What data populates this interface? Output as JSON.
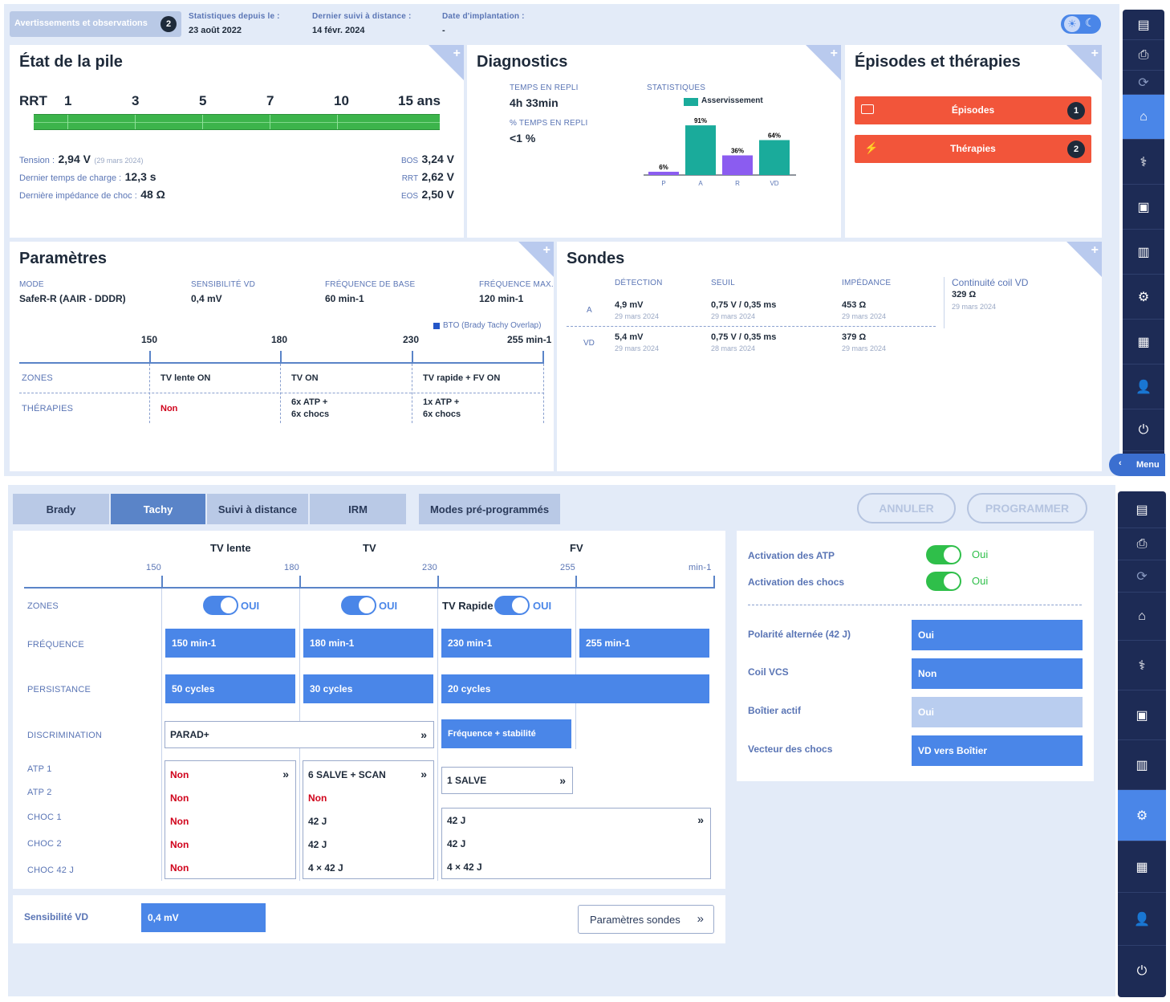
{
  "top": {
    "alerts_label": "Avertissements et observations",
    "alerts_count": "2",
    "stats_label": "Statistiques depuis le :",
    "stats_value": "23 août 2022",
    "remote_label": "Dernier suivi à distance :",
    "remote_value": "14 févr. 2024",
    "impl_label": "Date d'implantation :",
    "impl_value": "-"
  },
  "battery": {
    "title": "État de la pile",
    "rrt": "RRT",
    "ticks": [
      "1",
      "3",
      "5",
      "7",
      "10",
      "15 ans"
    ],
    "tension_label": "Tension :",
    "tension_value": "2,94 V",
    "tension_date": "(29 mars 2024)",
    "charge_label": "Dernier temps de charge :",
    "charge_value": "12,3 s",
    "imp_label": "Dernière impédance de choc :",
    "imp_value": "48 Ω",
    "bos_label": "BOS",
    "bos_value": "3,24 V",
    "rrt_label": "RRT",
    "rrt_value": "2,62 V",
    "eos_label": "EOS",
    "eos_value": "2,50 V"
  },
  "diag": {
    "title": "Diagnostics",
    "t1_label": "TEMPS EN REPLI",
    "t1_value": "4h 33min",
    "t2_label": "% TEMPS EN REPLI",
    "t2_value": "<1 %",
    "stats_label": "STATISTIQUES",
    "legend": "Asservissement"
  },
  "chart_data": {
    "type": "bar",
    "categories": [
      "P",
      "A",
      "R",
      "VD"
    ],
    "values": [
      6,
      91,
      36,
      64
    ],
    "labels": [
      "6%",
      "91%",
      "36%",
      "64%"
    ],
    "ylim": [
      0,
      100
    ],
    "legend": "Asservissement"
  },
  "episodes": {
    "title": "Épisodes et thérapies",
    "ep_label": "Épisodes",
    "ep_count": "1",
    "th_label": "Thérapies",
    "th_count": "2"
  },
  "params": {
    "title": "Paramètres",
    "mode_label": "MODE",
    "mode_value": "SafeR-R (AAIR - DDDR)",
    "sens_label": "SENSIBILITÉ VD",
    "sens_value": "0,4 mV",
    "base_label": "FRÉQUENCE DE BASE",
    "base_value": "60 min-1",
    "max_label": "FRÉQUENCE MAX.",
    "max_value": "120 min-1",
    "bto": "BTO (Brady Tachy Overlap)",
    "scale": [
      "150",
      "180",
      "230",
      "255 min-1"
    ],
    "zones_label": "ZONES",
    "ther_label": "THÉRAPIES",
    "z1": "TV lente ON",
    "z2": "TV ON",
    "z3": "TV rapide + FV ON",
    "t1": "Non",
    "t2a": "6x ATP  +",
    "t2b": "6x chocs",
    "t3a": "1x ATP  +",
    "t3b": "6x chocs"
  },
  "sondes": {
    "title": "Sondes",
    "h_det": "DÉTECTION",
    "h_seuil": "SEUIL",
    "h_imp": "IMPÉDANCE",
    "coil_label": "Continuité coil VD",
    "coil_value": "329 Ω",
    "coil_date": "29 mars 2024",
    "rows": [
      {
        "ch": "A",
        "det": "4,9 mV",
        "det_d": "29 mars 2024",
        "seuil": "0,75 V / 0,35 ms",
        "seuil_d": "29 mars 2024",
        "imp": "453 Ω",
        "imp_d": "29 mars 2024"
      },
      {
        "ch": "VD",
        "det": "5,4 mV",
        "det_d": "29 mars 2024",
        "seuil": "0,75 V / 0,35 ms",
        "seuil_d": "28 mars 2024",
        "imp": "379 Ω",
        "imp_d": "29 mars 2024"
      }
    ]
  },
  "menu_label": "Menu",
  "tabs": [
    "Brady",
    "Tachy",
    "Suivi à distance",
    "IRM",
    "Modes pré-programmés"
  ],
  "btn_cancel": "ANNULER",
  "btn_program": "PROGRAMMER",
  "tachy": {
    "h_tvl": "TV lente",
    "h_tv": "TV",
    "h_fv": "FV",
    "scale": [
      "150",
      "180",
      "230",
      "255",
      "min-1"
    ],
    "zones": "ZONES",
    "freq": "FRÉQUENCE",
    "pers": "PERSISTANCE",
    "disc": "DISCRIMINATION",
    "atp1": "ATP 1",
    "atp2": "ATP 2",
    "choc1": "CHOC 1",
    "choc2": "CHOC 2",
    "choc42": "CHOC 42 J",
    "oui": "OUI",
    "tvrapide": "TV Rapide",
    "f1": "150  min-1",
    "f2": "180  min-1",
    "f3": "230  min-1",
    "f4": "255  min-1",
    "p1": "50  cycles",
    "p2": "30  cycles",
    "p3": "20  cycles",
    "d1": "PARAD+",
    "d2": "Fréquence + stabilité",
    "c1": [
      "Non",
      "Non",
      "Non",
      "Non",
      "Non"
    ],
    "c2": [
      "6 SALVE + SCAN",
      "Non",
      "42 J",
      "42 J",
      "4 × 42 J"
    ],
    "c3a": "1 SALVE",
    "c3": [
      "42 J",
      "42 J",
      "4 × 42 J"
    ],
    "sens_label": "Sensibilité VD",
    "sens_value": "0,4  mV",
    "probes_btn": "Paramètres sondes"
  },
  "right": {
    "atp_label": "Activation des ATP",
    "atp_value": "Oui",
    "chocs_label": "Activation des chocs",
    "chocs_value": "Oui",
    "pol_label": "Polarité alternée (42 J)",
    "pol_value": "Oui",
    "coil_label": "Coil VCS",
    "coil_value": "Non",
    "boit_label": "Boîtier actif",
    "boit_value": "Oui",
    "vec_label": "Vecteur des chocs",
    "vec_value": "VD vers Boîtier"
  }
}
